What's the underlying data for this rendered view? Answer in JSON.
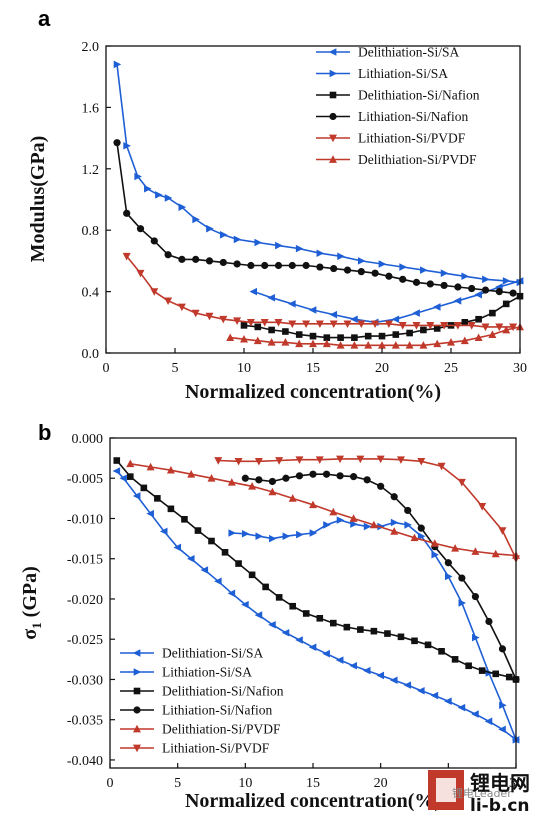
{
  "chart_data": [
    {
      "panel": "a",
      "type": "line",
      "xlabel": "Normalized concentration(%)",
      "ylabel": "Modulus(GPa)",
      "xlim": [
        0,
        30
      ],
      "ylim": [
        0,
        2.0
      ],
      "xticks": [
        0,
        5,
        10,
        15,
        20,
        25,
        30
      ],
      "yticks": [
        "0.0",
        "0.4",
        "0.8",
        "1.2",
        "1.6",
        "2.0"
      ],
      "legend_position": "top-right",
      "series": [
        {
          "name": "Delithiation-Si/SA",
          "color": "#1f5fd6",
          "marker": "triangle-left",
          "x": [
            30,
            28.5,
            27,
            25.5,
            24,
            22.5,
            21,
            19.5,
            18,
            16.5,
            15,
            13.5,
            12,
            10.7
          ],
          "y": [
            0.47,
            0.43,
            0.38,
            0.34,
            0.3,
            0.26,
            0.22,
            0.2,
            0.22,
            0.25,
            0.28,
            0.32,
            0.36,
            0.4
          ]
        },
        {
          "name": "Lithiation-Si/SA",
          "color": "#1f5fd6",
          "marker": "triangle-right",
          "x": [
            0.8,
            1.5,
            2.3,
            3,
            3.8,
            4.5,
            5.5,
            6.5,
            7.5,
            8.5,
            9.5,
            11,
            12.5,
            14,
            15.5,
            17,
            18.5,
            20,
            21.5,
            23,
            24.5,
            26,
            27.5,
            29,
            30
          ],
          "y": [
            1.88,
            1.35,
            1.15,
            1.07,
            1.03,
            1.01,
            0.95,
            0.87,
            0.81,
            0.77,
            0.74,
            0.72,
            0.7,
            0.68,
            0.65,
            0.63,
            0.6,
            0.58,
            0.56,
            0.54,
            0.52,
            0.5,
            0.48,
            0.47,
            0.46
          ]
        },
        {
          "name": "Delithiation-Si/Nafion",
          "color": "#111111",
          "marker": "square",
          "x": [
            30,
            29,
            28,
            27,
            26,
            25,
            24,
            23,
            22,
            21,
            20,
            19,
            18,
            17,
            16,
            15,
            14,
            13,
            12,
            11,
            10
          ],
          "y": [
            0.37,
            0.32,
            0.26,
            0.22,
            0.2,
            0.18,
            0.16,
            0.15,
            0.13,
            0.12,
            0.11,
            0.11,
            0.1,
            0.1,
            0.1,
            0.11,
            0.12,
            0.14,
            0.15,
            0.17,
            0.18
          ]
        },
        {
          "name": "Lithiation-Si/Nafion",
          "color": "#111111",
          "marker": "circle",
          "x": [
            0.8,
            1.5,
            2.5,
            3.5,
            4.5,
            5.5,
            6.5,
            7.5,
            8.5,
            9.5,
            10.5,
            11.5,
            12.5,
            13.5,
            14.5,
            15.5,
            16.5,
            17.5,
            18.5,
            19.5,
            20.5,
            21.5,
            22.5,
            23.5,
            24.5,
            25.5,
            26.5,
            27.5,
            28.5,
            29.5
          ],
          "y": [
            1.37,
            0.91,
            0.81,
            0.73,
            0.64,
            0.61,
            0.61,
            0.6,
            0.59,
            0.58,
            0.57,
            0.57,
            0.57,
            0.57,
            0.57,
            0.56,
            0.55,
            0.54,
            0.53,
            0.52,
            0.5,
            0.48,
            0.46,
            0.45,
            0.44,
            0.43,
            0.42,
            0.41,
            0.4,
            0.39
          ]
        },
        {
          "name": "Lithiation-Si/PVDF",
          "color": "#c0392b",
          "marker": "triangle-down",
          "x": [
            1.5,
            2.5,
            3.5,
            4.5,
            5.5,
            6.5,
            7.5,
            8.5,
            9.5,
            10.5,
            11.5,
            12.5,
            13.5,
            14.5,
            15.5,
            16.5,
            17.5,
            18.5,
            19.5,
            20.5,
            21.5,
            22.5,
            23.5,
            24.5,
            25.5,
            26.5,
            27.5,
            28.5,
            29.5
          ],
          "y": [
            0.63,
            0.52,
            0.4,
            0.34,
            0.3,
            0.26,
            0.24,
            0.22,
            0.21,
            0.2,
            0.2,
            0.2,
            0.19,
            0.19,
            0.19,
            0.19,
            0.19,
            0.19,
            0.19,
            0.19,
            0.18,
            0.18,
            0.18,
            0.18,
            0.18,
            0.18,
            0.17,
            0.17,
            0.17
          ]
        },
        {
          "name": "Delithiation-Si/PVDF",
          "color": "#c0392b",
          "marker": "triangle-up",
          "x": [
            30,
            29,
            28,
            27,
            26,
            25,
            24,
            23,
            22,
            21,
            20,
            19,
            18,
            17,
            16,
            15,
            14,
            13,
            12,
            11,
            10,
            9
          ],
          "y": [
            0.17,
            0.15,
            0.12,
            0.1,
            0.08,
            0.07,
            0.06,
            0.05,
            0.05,
            0.05,
            0.05,
            0.05,
            0.05,
            0.05,
            0.06,
            0.06,
            0.06,
            0.07,
            0.07,
            0.08,
            0.09,
            0.1
          ]
        }
      ]
    },
    {
      "panel": "b",
      "type": "line",
      "xlabel": "Normalized concentration(%)",
      "ylabel_main": "σ",
      "ylabel_sub": "1",
      "ylabel_unit": " (GPa)",
      "xlim": [
        0,
        30
      ],
      "ylim": [
        -0.041,
        0
      ],
      "xticks": [
        0,
        5,
        10,
        15,
        20,
        25,
        30
      ],
      "yticks": [
        "0.000",
        "-0.005",
        "-0.010",
        "-0.015",
        "-0.020",
        "-0.025",
        "-0.030",
        "-0.035",
        "-0.040"
      ],
      "legend_position": "bottom-left",
      "series": [
        {
          "name": "Delithiation-Si/SA",
          "color": "#1f5fd6",
          "marker": "triangle-left",
          "x": [
            30,
            29,
            28,
            27,
            26,
            25,
            24,
            23,
            22,
            21,
            20,
            19,
            18,
            17,
            16,
            15,
            14,
            13,
            12,
            11,
            10,
            9,
            8,
            7,
            6,
            5,
            4,
            3,
            2,
            1,
            0.5
          ],
          "y": [
            -0.0375,
            -0.0362,
            -0.0352,
            -0.0343,
            -0.0335,
            -0.0327,
            -0.032,
            -0.0314,
            -0.0307,
            -0.0301,
            -0.0295,
            -0.0289,
            -0.0283,
            -0.0276,
            -0.0268,
            -0.026,
            -0.0251,
            -0.0242,
            -0.0232,
            -0.022,
            -0.0207,
            -0.0193,
            -0.0178,
            -0.0164,
            -0.015,
            -0.0136,
            -0.0116,
            -0.0094,
            -0.0072,
            -0.005,
            -0.0041
          ]
        },
        {
          "name": "Lithiation-Si/SA",
          "color": "#1f5fd6",
          "marker": "triangle-right",
          "x": [
            9,
            10,
            11,
            12,
            13,
            14,
            15,
            16,
            17,
            18,
            19,
            20,
            21,
            22,
            23,
            24,
            25,
            26,
            27,
            28,
            29,
            30
          ],
          "y": [
            -0.0118,
            -0.0119,
            -0.0122,
            -0.0125,
            -0.0122,
            -0.012,
            -0.0118,
            -0.0108,
            -0.0102,
            -0.0107,
            -0.011,
            -0.011,
            -0.0105,
            -0.0108,
            -0.0122,
            -0.0145,
            -0.0172,
            -0.0205,
            -0.0248,
            -0.0292,
            -0.0332,
            -0.0375
          ]
        },
        {
          "name": "Delithiation-Si/Nafion",
          "color": "#111111",
          "marker": "square",
          "x": [
            0.5,
            1.5,
            2.5,
            3.5,
            4.5,
            5.5,
            6.5,
            7.5,
            8.5,
            9.5,
            10.5,
            11.5,
            12.5,
            13.5,
            14.5,
            15.5,
            16.5,
            17.5,
            18.5,
            19.5,
            20.5,
            21.5,
            22.5,
            23.5,
            24.5,
            25.5,
            26.5,
            27.5,
            28.5,
            29.5,
            30
          ],
          "y": [
            -0.0028,
            -0.0048,
            -0.0062,
            -0.0075,
            -0.0088,
            -0.0101,
            -0.0115,
            -0.0128,
            -0.0142,
            -0.0156,
            -0.017,
            -0.0185,
            -0.0198,
            -0.0209,
            -0.0218,
            -0.0224,
            -0.023,
            -0.0235,
            -0.0238,
            -0.024,
            -0.0243,
            -0.0247,
            -0.0252,
            -0.0257,
            -0.0265,
            -0.0275,
            -0.0283,
            -0.0289,
            -0.0293,
            -0.0297,
            -0.03
          ]
        },
        {
          "name": "Lithiation-Si/Nafion",
          "color": "#111111",
          "marker": "circle",
          "x": [
            10,
            11,
            12,
            13,
            14,
            15,
            16,
            17,
            18,
            19,
            20,
            21,
            22,
            23,
            24,
            25,
            26,
            27,
            28,
            29,
            30
          ],
          "y": [
            -0.005,
            -0.0052,
            -0.0054,
            -0.005,
            -0.0047,
            -0.0045,
            -0.0045,
            -0.0047,
            -0.0048,
            -0.0052,
            -0.006,
            -0.0073,
            -0.009,
            -0.0112,
            -0.0135,
            -0.0155,
            -0.0174,
            -0.0197,
            -0.0228,
            -0.0262,
            -0.03
          ]
        },
        {
          "name": "Delithiation-Si/PVDF",
          "color": "#c0392b",
          "marker": "triangle-up",
          "x": [
            1.5,
            3,
            4.5,
            6,
            7.5,
            9,
            10.5,
            12,
            13.5,
            15,
            16.5,
            18,
            19.5,
            21,
            22.5,
            24,
            25.5,
            27,
            28.5,
            30
          ],
          "y": [
            -0.0032,
            -0.0036,
            -0.004,
            -0.0045,
            -0.005,
            -0.0055,
            -0.006,
            -0.0067,
            -0.0075,
            -0.0083,
            -0.0092,
            -0.01,
            -0.0108,
            -0.0116,
            -0.0124,
            -0.0131,
            -0.0137,
            -0.0141,
            -0.0144,
            -0.0146
          ]
        },
        {
          "name": "Lithiation-Si/PVDF",
          "color": "#c0392b",
          "marker": "triangle-down",
          "x": [
            8,
            9.5,
            11,
            12.5,
            14,
            15.5,
            17,
            18.5,
            20,
            21.5,
            23,
            24.5,
            26,
            27.5,
            29,
            30
          ],
          "y": [
            -0.0028,
            -0.0029,
            -0.0029,
            -0.0028,
            -0.0027,
            -0.0027,
            -0.0026,
            -0.0026,
            -0.0026,
            -0.0027,
            -0.0029,
            -0.0035,
            -0.0055,
            -0.0085,
            -0.0115,
            -0.015
          ]
        }
      ]
    }
  ],
  "watermark": {
    "cn": "锂电网",
    "url": "li-b.cn",
    "sub": "锂电Leader"
  }
}
